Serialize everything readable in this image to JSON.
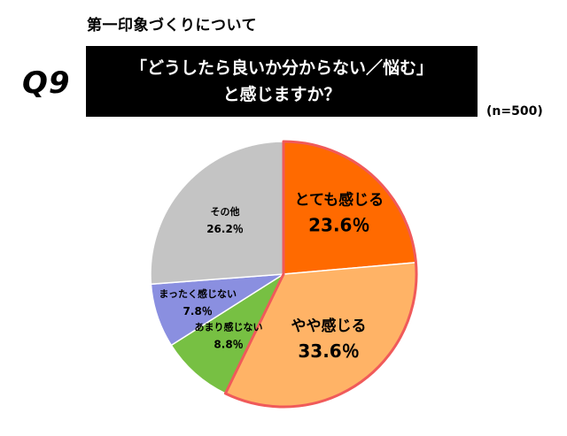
{
  "header": {
    "subtitle": "第一印象づくりについて",
    "question_number": "Q9",
    "question_line1": "「どうしたら良いか分からない／悩む」",
    "question_line2": "と感じますか？",
    "sample_size": "(n=500)"
  },
  "chart_data": {
    "type": "pie",
    "start": "12 o'clock",
    "direction": "clockwise",
    "slices": [
      {
        "label": "とても感じる",
        "value": 23.6,
        "value_text": "23.6％",
        "color": "#ff6a00",
        "emphasis": "large"
      },
      {
        "label": "やや感じる",
        "value": 33.6,
        "value_text": "33.6％",
        "color": "#ffb366",
        "emphasis": "large"
      },
      {
        "label": "あまり感じない",
        "value": 8.8,
        "value_text": "8.8％",
        "color": "#77c043",
        "emphasis": "small"
      },
      {
        "label": "まったく感じない",
        "value": 7.8,
        "value_text": "7.8％",
        "color": "#8a8fe0",
        "emphasis": "small"
      },
      {
        "label": "その他",
        "value": 26.2,
        "value_text": "26.2％",
        "color": "#c4c4c4",
        "emphasis": "small"
      }
    ],
    "highlight_border_color": "#f05a5a"
  }
}
